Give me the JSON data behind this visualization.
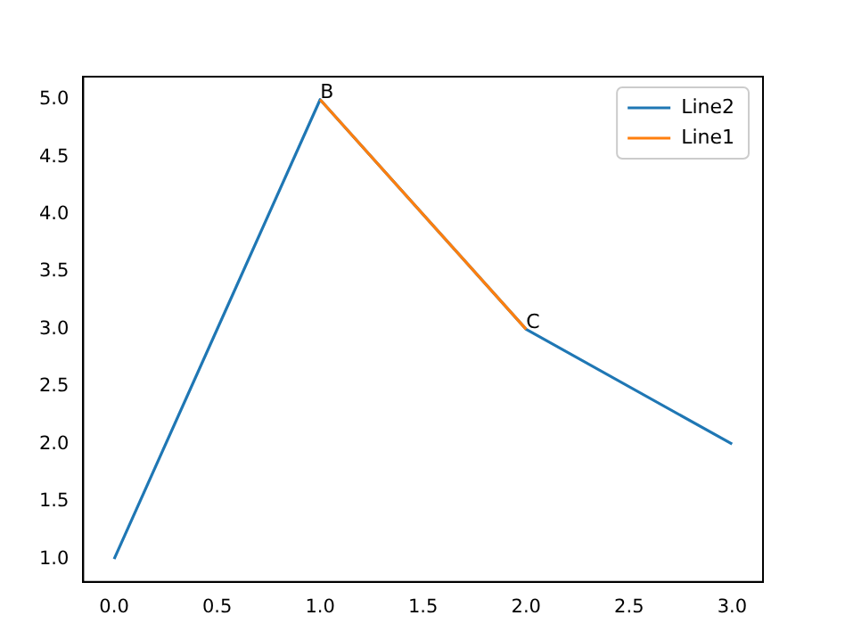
{
  "chart_data": {
    "type": "line",
    "xlim": [
      -0.15,
      3.15
    ],
    "ylim": [
      0.8,
      5.2
    ],
    "xticks": [
      {
        "value": 0,
        "label": "0.0"
      },
      {
        "value": 0.5,
        "label": "0.5"
      },
      {
        "value": 1,
        "label": "1.0"
      },
      {
        "value": 1.5,
        "label": "1.5"
      },
      {
        "value": 2,
        "label": "2.0"
      },
      {
        "value": 2.5,
        "label": "2.5"
      },
      {
        "value": 3,
        "label": "3.0"
      }
    ],
    "yticks": [
      {
        "value": 1,
        "label": "1.0"
      },
      {
        "value": 1.5,
        "label": "1.5"
      },
      {
        "value": 2,
        "label": "2.0"
      },
      {
        "value": 2.5,
        "label": "2.5"
      },
      {
        "value": 3,
        "label": "3.0"
      },
      {
        "value": 3.5,
        "label": "3.5"
      },
      {
        "value": 4,
        "label": "4.0"
      },
      {
        "value": 4.5,
        "label": "4.5"
      },
      {
        "value": 5,
        "label": "5.0"
      }
    ],
    "series": [
      {
        "name": "Line2",
        "color": "#1f77b4",
        "x": [
          0,
          1,
          2,
          3
        ],
        "values": [
          1,
          5,
          3,
          2
        ]
      },
      {
        "name": "Line1",
        "color": "#ff7f0e",
        "x": [
          1,
          2
        ],
        "values": [
          5,
          3
        ]
      }
    ],
    "annotations": [
      {
        "text": "B",
        "x": 1,
        "y": 5
      },
      {
        "text": "C",
        "x": 2,
        "y": 3
      }
    ],
    "legend": "top right",
    "grid": false,
    "marker": "none",
    "line_style": "solid"
  }
}
